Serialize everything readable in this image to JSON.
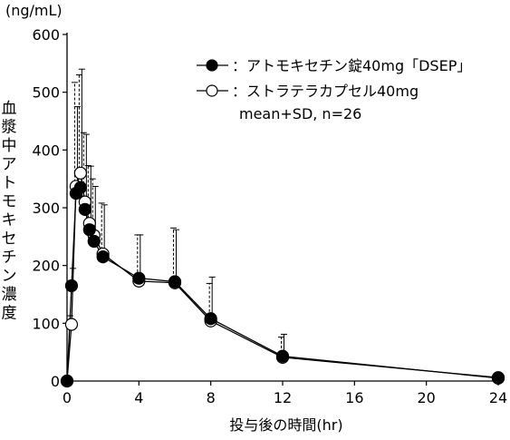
{
  "chart_data": {
    "type": "line",
    "y_unit_label": "(ng/mL)",
    "xlabel": "投与後の時間(hr)",
    "ylabel": "血漿中アトモキセチン濃度",
    "xlim": [
      0,
      24
    ],
    "ylim": [
      0,
      600
    ],
    "x_ticks": [
      0,
      4,
      8,
      12,
      16,
      20,
      24
    ],
    "y_ticks": [
      0,
      100,
      200,
      300,
      400,
      500,
      600
    ],
    "grid": false,
    "legend_position": "top-right",
    "legend_note": "mean+SD, n=26",
    "series": [
      {
        "name": "：アトモキセチン錠40mg「DSEP」",
        "marker": "filled-circle",
        "color": "#000000",
        "x": [
          0,
          0.25,
          0.5,
          0.75,
          1,
          1.25,
          1.5,
          2,
          4,
          6,
          8,
          12,
          24
        ],
        "y": [
          0,
          165,
          325,
          335,
          297,
          262,
          242,
          215,
          178,
          172,
          108,
          43,
          5
        ],
        "sd": [
          0,
          30,
          150,
          205,
          130,
          110,
          95,
          90,
          75,
          90,
          72,
          38,
          0
        ]
      },
      {
        "name": "：ストラテラカプセル40mg",
        "marker": "open-circle",
        "color": "#000000",
        "x": [
          0,
          0.25,
          0.5,
          0.75,
          1,
          1.25,
          1.5,
          2,
          4,
          6,
          8,
          12,
          24
        ],
        "y": [
          0,
          98,
          337,
          360,
          310,
          273,
          252,
          220,
          173,
          170,
          104,
          41,
          6
        ],
        "sd": [
          0,
          15,
          180,
          170,
          120,
          100,
          98,
          88,
          80,
          95,
          65,
          35,
          0
        ]
      }
    ]
  }
}
